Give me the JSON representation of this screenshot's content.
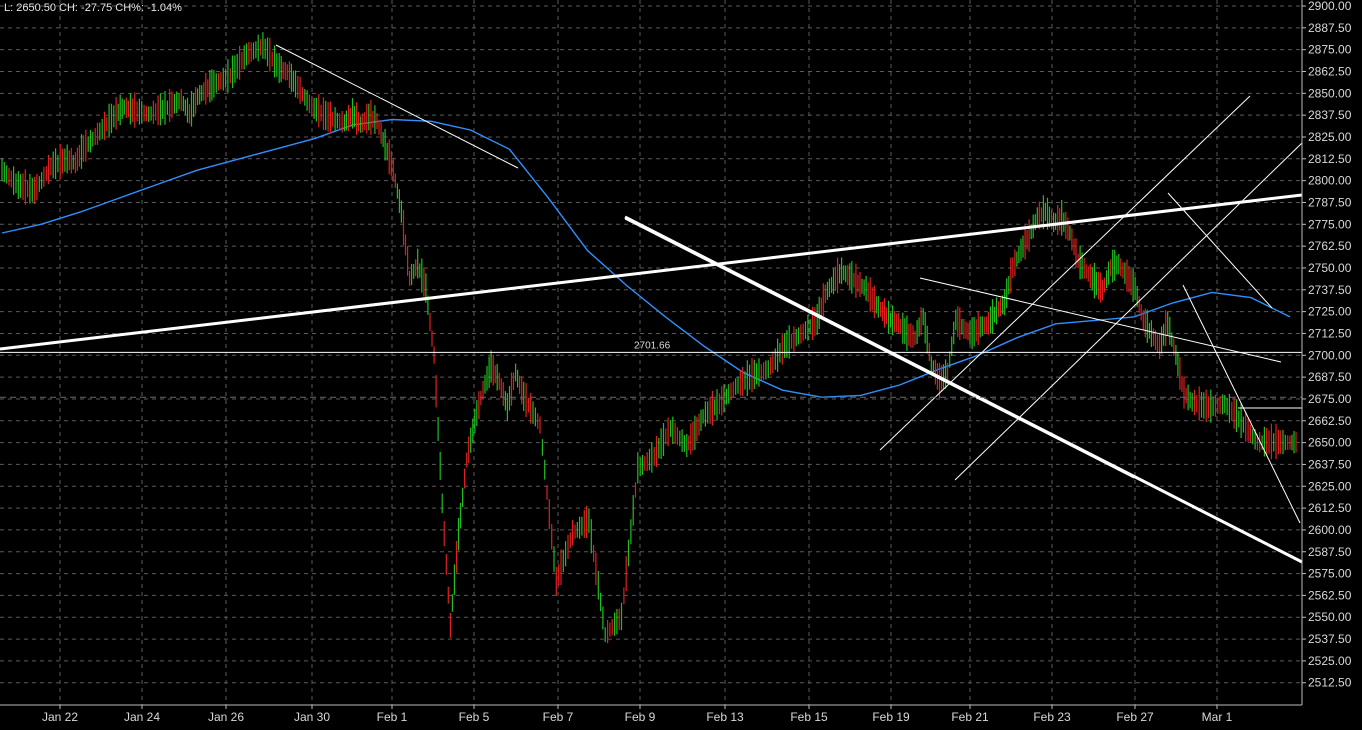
{
  "status_line": "L: 2650.50 CH: -27.75 CH%: -1.04%",
  "colors": {
    "background": "#000000",
    "grid": "#5a5a5a",
    "axis_text": "#d8d8d8",
    "up_bar": "#1fbf1f",
    "down_bar": "#e02020",
    "moving_average": "#2f8fff",
    "trendline": "#ffffff"
  },
  "chart_data": {
    "type": "candlestick",
    "title": "",
    "xlabel": "",
    "ylabel": "",
    "ylim": [
      2500,
      2900
    ],
    "grid": true,
    "y_axis_position": "right",
    "y_ticks": [
      "2900.00",
      "2887.50",
      "2875.00",
      "2862.50",
      "2850.00",
      "2837.50",
      "2825.00",
      "2812.50",
      "2800.00",
      "2787.50",
      "2775.00",
      "2762.50",
      "2750.00",
      "2737.50",
      "2725.00",
      "2712.50",
      "2700.00",
      "2687.50",
      "2675.00",
      "2662.50",
      "2650.00",
      "2637.50",
      "2625.00",
      "2612.50",
      "2600.00",
      "2587.50",
      "2575.00",
      "2562.50",
      "2550.00",
      "2537.50",
      "2525.00",
      "2512.50"
    ],
    "x_ticks": [
      "Jan 22",
      "Jan 24",
      "Jan 26",
      "Jan 30",
      "Feb 1",
      "Feb 5",
      "Feb 7",
      "Feb 9",
      "Feb 13",
      "Feb 15",
      "Feb 19",
      "Feb 21",
      "Feb 23",
      "Feb 27",
      "Mar 1"
    ],
    "series": [
      {
        "kind": "price",
        "x": [
          0,
          2,
          4,
          6,
          8,
          9,
          10,
          12,
          14,
          15,
          16,
          18,
          20,
          22,
          23,
          24,
          25,
          26,
          28,
          30,
          32,
          34,
          35,
          36,
          38,
          40,
          42,
          43,
          44,
          45,
          46,
          47,
          48,
          49,
          50,
          51,
          52,
          53,
          54,
          55,
          56,
          57,
          58,
          59,
          60,
          61,
          62,
          63,
          64,
          66,
          68,
          70,
          72,
          74,
          76,
          78,
          80,
          82,
          84,
          85,
          86,
          88,
          90,
          92,
          94,
          96,
          98,
          100,
          101,
          102,
          103,
          104,
          105,
          106,
          107,
          108,
          109,
          110,
          111,
          112,
          113,
          114,
          115,
          116,
          117,
          118,
          119,
          120,
          121,
          122,
          123,
          124,
          125,
          126,
          127,
          128,
          129,
          130,
          131,
          132,
          133,
          134,
          135,
          136,
          137,
          138,
          139,
          140,
          141,
          142,
          143,
          144,
          145,
          146,
          148,
          150,
          152,
          154,
          156,
          158
        ],
        "close": [
          2806,
          2797,
          2794,
          2808,
          2812,
          2810,
          2818,
          2828,
          2838,
          2842,
          2840,
          2838,
          2841,
          2846,
          2838,
          2848,
          2852,
          2855,
          2860,
          2872,
          2877,
          2864,
          2862,
          2855,
          2842,
          2836,
          2833,
          2838,
          2832,
          2836,
          2834,
          2820,
          2806,
          2782,
          2744,
          2752,
          2738,
          2700,
          2615,
          2545,
          2597,
          2640,
          2662,
          2680,
          2693,
          2685,
          2670,
          2690,
          2676,
          2660,
          2570,
          2598,
          2605,
          2540,
          2550,
          2635,
          2642,
          2658,
          2648,
          2655,
          2665,
          2672,
          2682,
          2688,
          2692,
          2705,
          2712,
          2720,
          2735,
          2742,
          2748,
          2745,
          2741,
          2738,
          2730,
          2725,
          2720,
          2718,
          2712,
          2710,
          2722,
          2695,
          2685,
          2690,
          2720,
          2715,
          2712,
          2716,
          2718,
          2725,
          2730,
          2750,
          2760,
          2768,
          2779,
          2782,
          2776,
          2778,
          2770,
          2754,
          2748,
          2742,
          2737,
          2750,
          2752,
          2745,
          2738,
          2720,
          2712,
          2705,
          2718,
          2700,
          2678,
          2673,
          2670,
          2672,
          2662,
          2650,
          2650,
          2650
        ],
        "direction": [
          "up",
          "down",
          "down",
          "up",
          "up",
          "down",
          "up",
          "up",
          "up",
          "up",
          "down",
          "down",
          "up",
          "up",
          "down",
          "up",
          "up",
          "up",
          "up",
          "up",
          "up",
          "down",
          "down",
          "down",
          "down",
          "down",
          "down",
          "up",
          "down",
          "up",
          "down",
          "down",
          "down",
          "down",
          "down",
          "up",
          "down",
          "down",
          "down",
          "down",
          "up",
          "up",
          "up",
          "up",
          "up",
          "down",
          "down",
          "up",
          "down",
          "down",
          "down",
          "up",
          "up",
          "down",
          "up",
          "up",
          "up",
          "up",
          "down",
          "up",
          "up",
          "up",
          "up",
          "up",
          "up",
          "up",
          "up",
          "up",
          "up",
          "up",
          "up",
          "down",
          "down",
          "down",
          "down",
          "down",
          "down",
          "down",
          "down",
          "down",
          "up",
          "down",
          "down",
          "up",
          "up",
          "down",
          "down",
          "up",
          "up",
          "up",
          "up",
          "up",
          "up",
          "up",
          "up",
          "up",
          "down",
          "up",
          "down",
          "down",
          "down",
          "down",
          "down",
          "up",
          "up",
          "down",
          "down",
          "down",
          "down",
          "down",
          "up",
          "down",
          "down",
          "down",
          "down",
          "up",
          "down",
          "down",
          "down",
          "down"
        ]
      },
      {
        "kind": "moving-average",
        "values": [
          2770,
          2775,
          2782,
          2790,
          2798,
          2806,
          2812,
          2818,
          2824,
          2832,
          2835,
          2834,
          2829,
          2818,
          2790,
          2760,
          2740,
          2722,
          2705,
          2690,
          2680,
          2676,
          2677,
          2683,
          2692,
          2700,
          2710,
          2718,
          2720,
          2722,
          2730,
          2736,
          2733,
          2722
        ]
      }
    ],
    "annotations": [
      {
        "type": "horizontal-line",
        "value": 2701.66,
        "label": "2701.66"
      },
      {
        "type": "horizontal-line",
        "value": 2676.0,
        "style": "dashed"
      },
      {
        "type": "horizontal-line",
        "value": 2669.0,
        "style": "segment"
      }
    ]
  }
}
